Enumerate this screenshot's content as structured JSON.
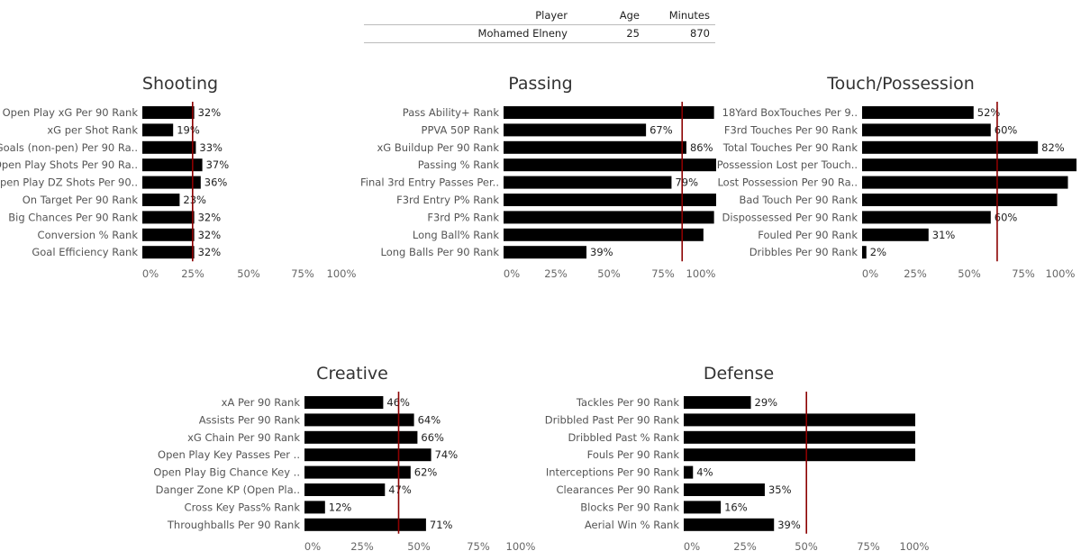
{
  "player_table": {
    "headers": [
      "Player",
      "Age",
      "Minutes"
    ],
    "row": [
      "Mohamed Elneny",
      "25",
      "870"
    ]
  },
  "chart_data": [
    {
      "type": "bar",
      "title": "Shooting",
      "categories": [
        "Open Play xG Per 90 Rank",
        "xG per Shot Rank",
        "Goals (non-pen) Per 90 Ra..",
        "Open Play Shots Per 90 Ra..",
        "Open Play DZ Shots Per 90..",
        "On Target Per 90 Rank",
        "Big Chances Per 90 Rank",
        "Conversion % Rank",
        "Goal Efficiency Rank"
      ],
      "values": [
        32,
        19,
        33,
        37,
        36,
        23,
        32,
        32,
        32
      ],
      "value_labels": [
        "32%",
        "19%",
        "33%",
        "37%",
        "36%",
        "23%",
        "32%",
        "32%",
        "32%"
      ],
      "xticks": [
        "0%",
        "25%",
        "50%",
        "75%",
        "100%"
      ],
      "xlim": [
        0,
        100
      ],
      "reference_line": 31,
      "bar_color": "#000000",
      "reference_color": "#8b0000"
    },
    {
      "type": "bar",
      "title": "Passing",
      "categories": [
        "Pass Ability+ Rank",
        "PPVA 50P Rank",
        "xG Buildup Per 90 Rank",
        "Passing % Rank",
        "Final 3rd Entry Passes Per..",
        "F3rd Entry P% Rank",
        "F3rd P% Rank",
        "Long Ball% Rank",
        "Long Balls Per 90  Rank"
      ],
      "values": [
        99,
        67,
        86,
        100,
        79,
        100,
        99,
        94,
        39
      ],
      "value_labels": [
        "",
        "67%",
        "86%",
        "",
        "79%",
        "",
        "",
        "",
        "39%"
      ],
      "xticks": [
        "0%",
        "25%",
        "50%",
        "75%",
        "100%"
      ],
      "xlim": [
        0,
        100
      ],
      "reference_line": 84,
      "bar_color": "#000000",
      "reference_color": "#8b0000"
    },
    {
      "type": "bar",
      "title": "Touch/Possession",
      "categories": [
        "18Yard BoxTouches Per 9..",
        "F3rd Touches Per 90 Rank",
        "Total Touches Per 90 Rank",
        "Possession Lost per Touch..",
        "Lost Possession Per 90 Ra..",
        "Bad Touch Per 90 Rank",
        "Dispossessed Per 90 Rank",
        "Fouled Per 90 Rank",
        "Dribbles Per 90 Rank"
      ],
      "values": [
        52,
        60,
        82,
        100,
        96,
        91,
        60,
        31,
        2
      ],
      "value_labels": [
        "52%",
        "60%",
        "82%",
        "",
        "",
        "",
        "60%",
        "31%",
        "2%"
      ],
      "xticks": [
        "0%",
        "25%",
        "50%",
        "75%",
        "100%"
      ],
      "xlim": [
        0,
        100
      ],
      "reference_line": 63,
      "bar_color": "#000000",
      "reference_color": "#8b0000"
    },
    {
      "type": "bar",
      "title": "Creative",
      "categories": [
        "xA Per 90 Rank",
        "Assists Per 90 Rank",
        "xG Chain Per 90 Rank",
        "Open Play Key Passes Per ..",
        "Open Play Big Chance Key ..",
        "Danger Zone KP (Open Pla..",
        "Cross Key Pass% Rank",
        "Throughballs Per 90 Rank"
      ],
      "values": [
        46,
        64,
        66,
        74,
        62,
        47,
        12,
        71
      ],
      "value_labels": [
        "46%",
        "64%",
        "66%",
        "74%",
        "62%",
        "47%",
        "12%",
        "71%"
      ],
      "xticks": [
        "0%",
        "25%",
        "50%",
        "75%",
        "100%"
      ],
      "xlim": [
        0,
        100
      ],
      "reference_line": 55,
      "bar_color": "#000000",
      "reference_color": "#8b0000"
    },
    {
      "type": "bar",
      "title": "Defense",
      "categories": [
        "Tackles Per 90 Rank",
        "Dribbled Past Per 90 Rank",
        "Dribbled Past % Rank",
        "Fouls Per 90 Rank",
        "Interceptions Per 90 Rank",
        "Clearances Per 90 Rank",
        "Blocks Per 90 Rank",
        "Aerial Win % Rank"
      ],
      "values": [
        29,
        100,
        100,
        100,
        4,
        35,
        16,
        39
      ],
      "value_labels": [
        "29%",
        "",
        "",
        "",
        "4%",
        "35%",
        "16%",
        "39%"
      ],
      "xticks": [
        "0%",
        "25%",
        "50%",
        "75%",
        "100%"
      ],
      "xlim": [
        0,
        100
      ],
      "reference_line": 53,
      "bar_color": "#000000",
      "reference_color": "#8b0000"
    }
  ]
}
